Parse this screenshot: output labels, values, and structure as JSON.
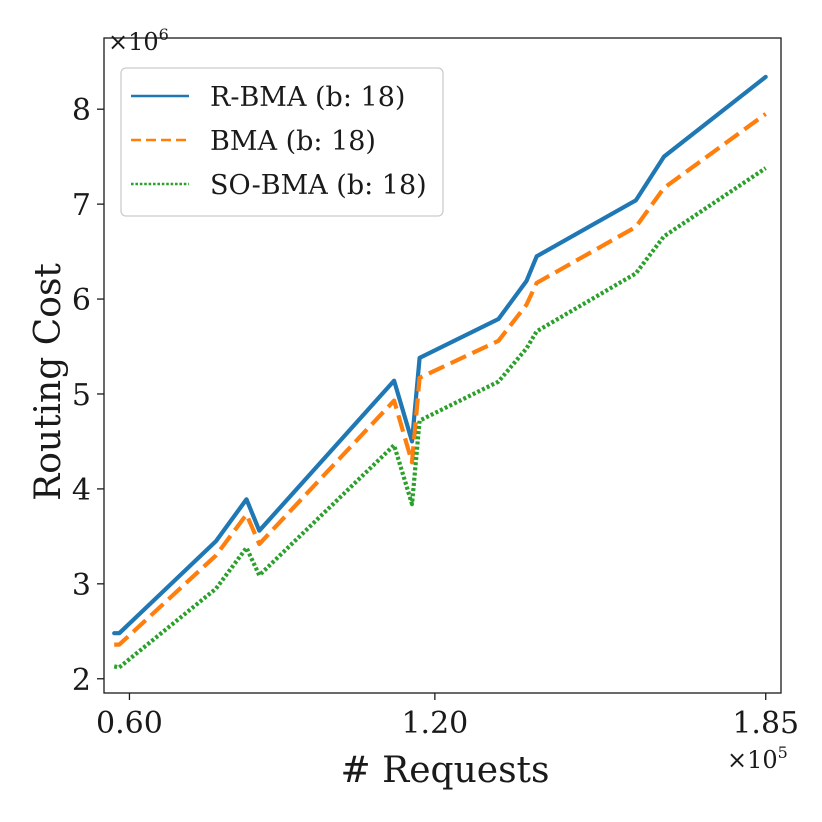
{
  "chart_data": {
    "type": "line",
    "title": "",
    "xlabel": "# Requests",
    "ylabel": "Routing Cost",
    "x_multiplier": "×10",
    "x_multiplier_exp": "5",
    "y_multiplier": "×10",
    "y_multiplier_exp": "6",
    "xlim": [
      0.55,
      1.88
    ],
    "ylim": [
      1.85,
      8.75
    ],
    "xticks": [
      0.6,
      1.2,
      1.85
    ],
    "xtick_labels": [
      "0.60",
      "1.20",
      "1.85"
    ],
    "yticks": [
      2,
      3,
      4,
      5,
      6,
      7,
      8
    ],
    "ytick_labels": [
      "2",
      "3",
      "4",
      "5",
      "6",
      "7",
      "8"
    ],
    "legend_position": "top-left",
    "series": [
      {
        "name": "R-BMA (b: 18)",
        "color": "#1f77b4",
        "style": "solid",
        "x": [
          0.57,
          0.58,
          0.77,
          0.83,
          0.855,
          1.12,
          1.155,
          1.17,
          1.325,
          1.38,
          1.4,
          1.595,
          1.65,
          1.85
        ],
        "y": [
          2.48,
          2.48,
          3.45,
          3.89,
          3.56,
          5.14,
          4.5,
          5.38,
          5.79,
          6.19,
          6.45,
          7.04,
          7.5,
          8.34
        ]
      },
      {
        "name": "BMA (b: 18)",
        "color": "#ff7f0e",
        "style": "dashed",
        "x": [
          0.57,
          0.58,
          0.77,
          0.83,
          0.855,
          1.12,
          1.155,
          1.17,
          1.325,
          1.38,
          1.4,
          1.595,
          1.65,
          1.85
        ],
        "y": [
          2.36,
          2.36,
          3.3,
          3.73,
          3.42,
          4.93,
          4.28,
          5.17,
          5.56,
          5.94,
          6.17,
          6.76,
          7.17,
          7.95
        ]
      },
      {
        "name": "SO-BMA (b: 18)",
        "color": "#2ca02c",
        "style": "dotted",
        "x": [
          0.57,
          0.58,
          0.77,
          0.83,
          0.855,
          1.12,
          1.155,
          1.17,
          1.325,
          1.38,
          1.4,
          1.595,
          1.65,
          1.85
        ],
        "y": [
          2.13,
          2.12,
          2.95,
          3.38,
          3.09,
          4.46,
          3.84,
          4.72,
          5.13,
          5.48,
          5.66,
          6.27,
          6.66,
          7.38
        ]
      }
    ]
  }
}
